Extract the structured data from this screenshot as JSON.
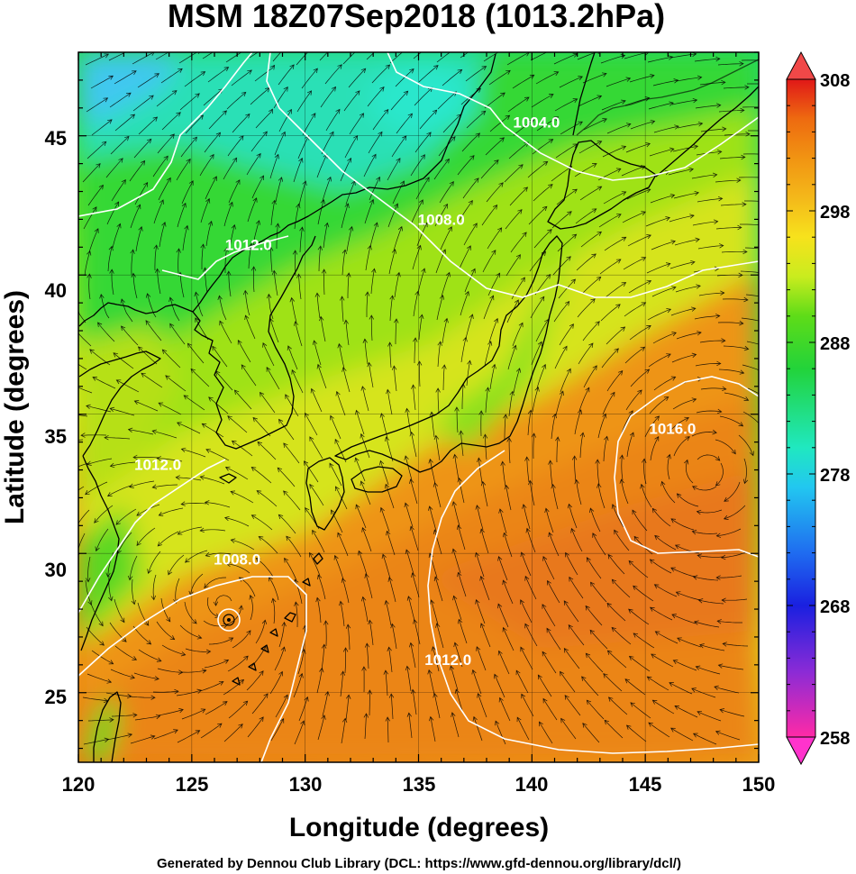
{
  "figure": {
    "title": "MSM 18Z07Sep2018 (1013.2hPa)",
    "footer": "Generated by Dennou Club Library (DCL: https://www.gfd-dennou.org/library/dcl/)"
  },
  "colors": {
    "contour": "#ffffff",
    "coastline": "#000000",
    "streamlines": "#000000",
    "colorbar_scale": [
      "#ff2aa6",
      "#8a2bd6",
      "#1a20e0",
      "#1f6cf0",
      "#22c7f0",
      "#20e8c0",
      "#22d33a",
      "#5edc18",
      "#c9ec1e",
      "#f7e21c",
      "#f4b81a",
      "#f19412",
      "#ee6a10",
      "#ea3c10",
      "#e01818"
    ]
  },
  "map": {
    "projection": "equirectangular",
    "lon_range": [
      120,
      150
    ],
    "lat_range": [
      22.5,
      48
    ],
    "field": "temperature (K) shaded, sea-level pressure contours (hPa), wind streamlines",
    "typhoon_center": {
      "lon": 126.5,
      "lat": 28.2
    }
  },
  "chart_data": {
    "type": "heatmap",
    "title": "MSM 18Z07Sep2018 (1013.2hPa)",
    "xlabel": "Longitude (degrees)",
    "ylabel": "Latitude  (degrees)",
    "xlim": [
      120,
      150
    ],
    "ylim": [
      22.5,
      48
    ],
    "xticks": [
      "120",
      "125",
      "130",
      "135",
      "140",
      "145",
      "150"
    ],
    "yticks": [
      "25",
      "30",
      "35",
      "40",
      "45"
    ],
    "colorbar": {
      "min": 258,
      "max": 308,
      "ticks": [
        "258",
        "268",
        "278",
        "288",
        "298",
        "308"
      ]
    },
    "contour_labels": [
      {
        "text": "1004.0",
        "lon": 140.2,
        "lat": 45.3
      },
      {
        "text": "1008.0",
        "lon": 136.0,
        "lat": 41.8
      },
      {
        "text": "1012.0",
        "lon": 127.5,
        "lat": 40.9
      },
      {
        "text": "1012.0",
        "lon": 123.5,
        "lat": 33.0
      },
      {
        "text": "1008.0",
        "lon": 127.0,
        "lat": 29.6
      },
      {
        "text": "1012.0",
        "lon": 136.3,
        "lat": 26.0
      },
      {
        "text": "1016.0",
        "lon": 146.2,
        "lat": 34.3
      }
    ],
    "grid": true
  }
}
